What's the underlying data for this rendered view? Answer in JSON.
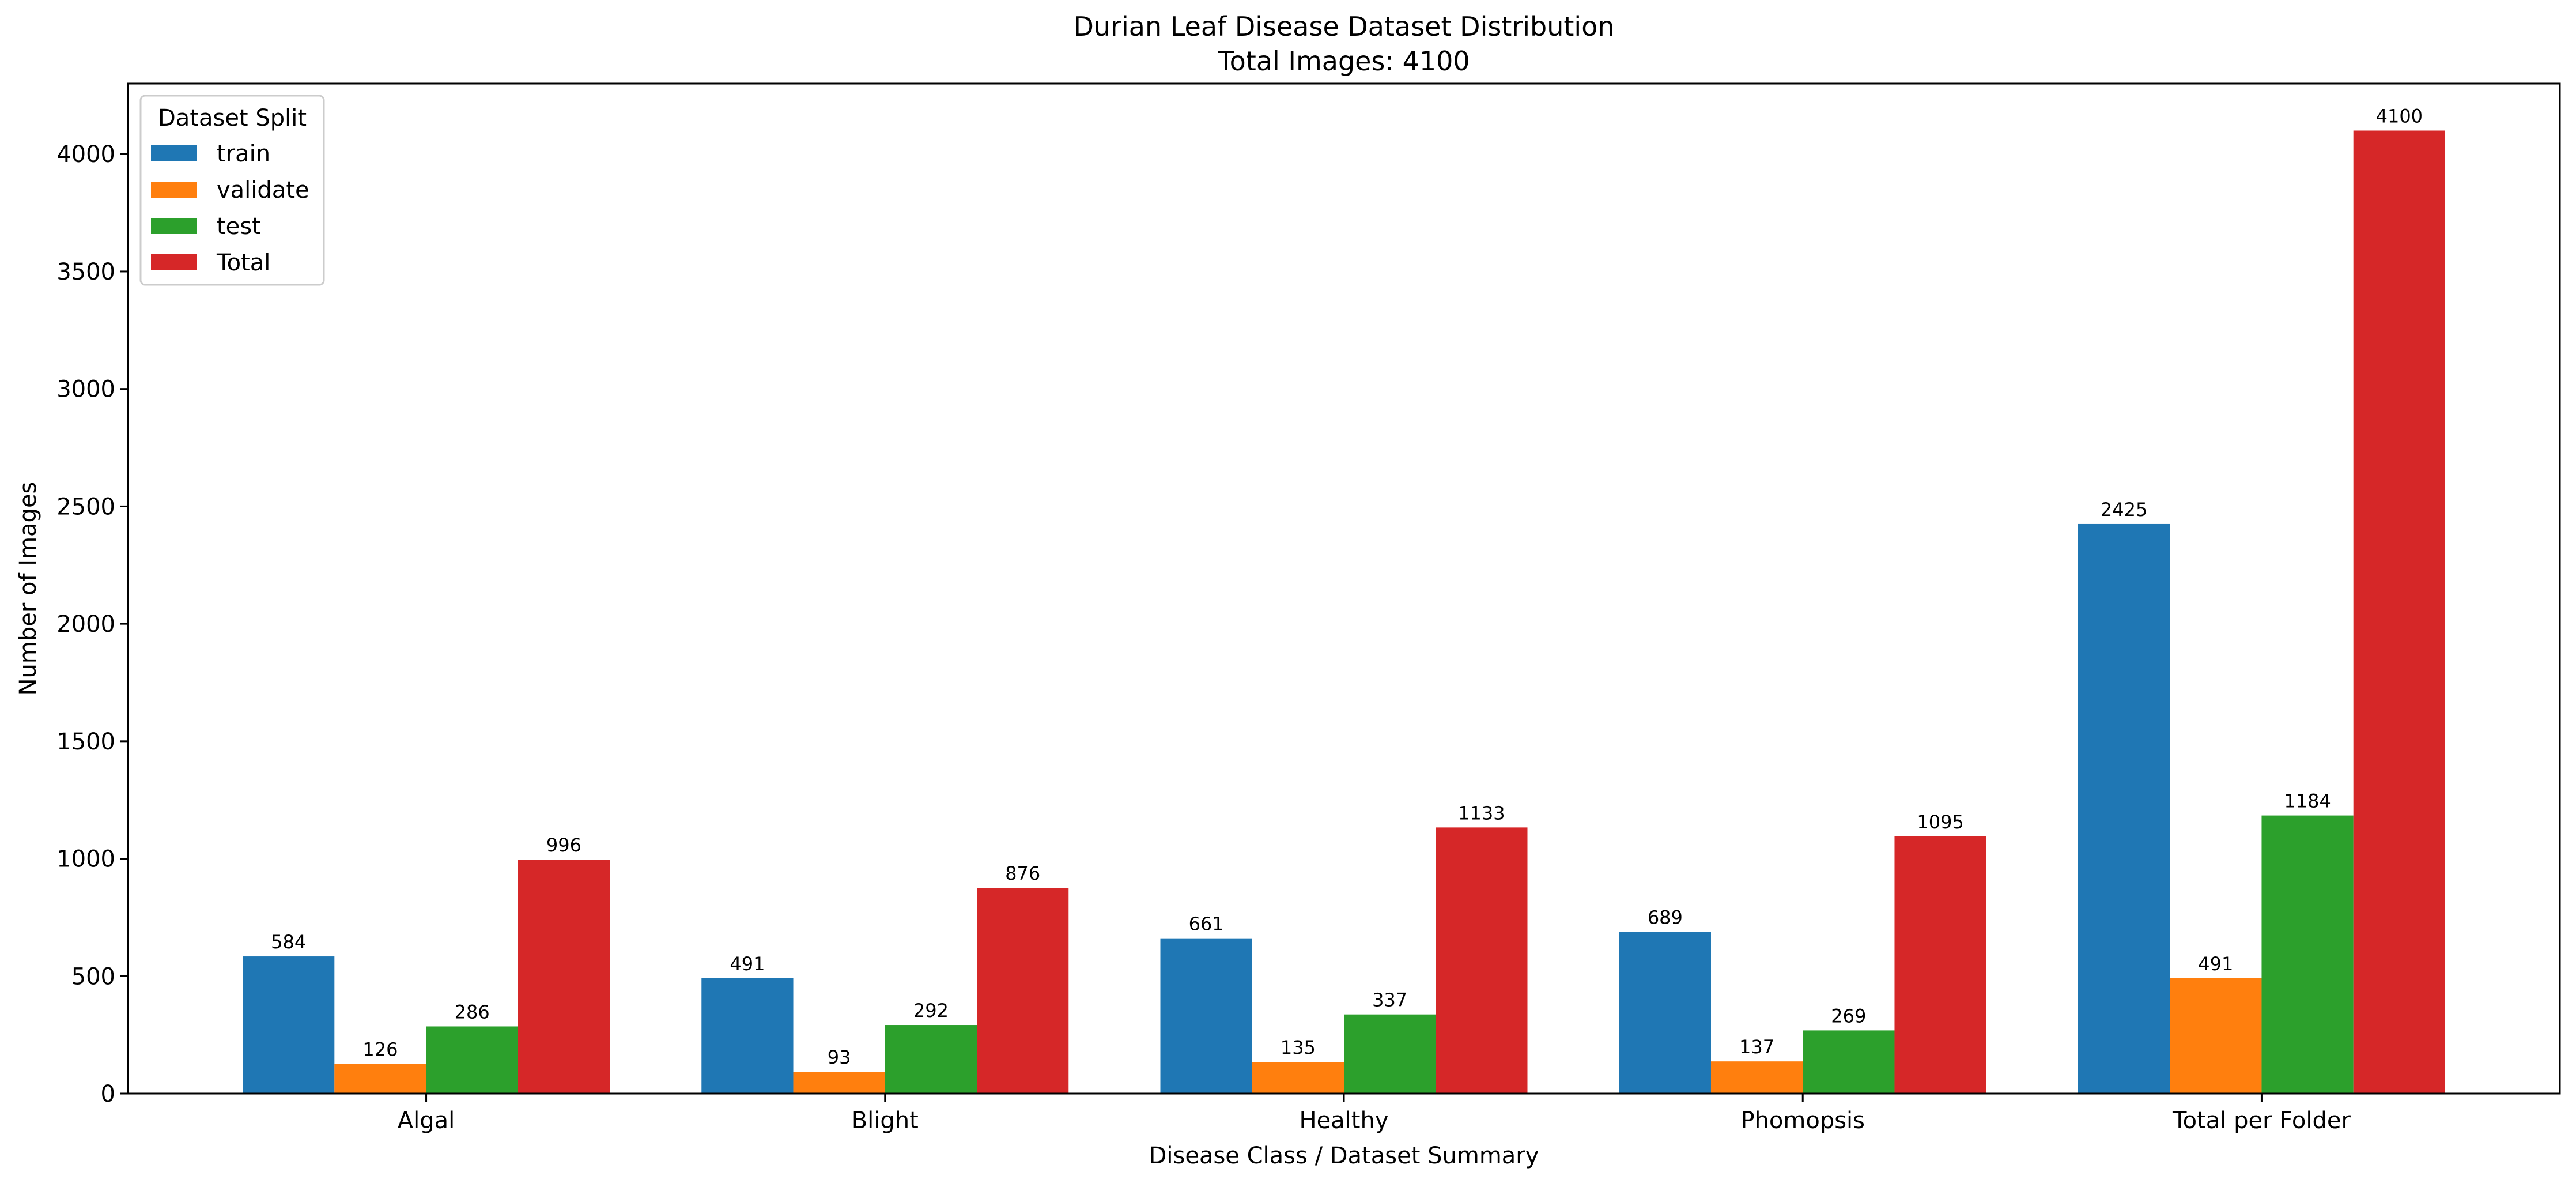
{
  "chart_data": {
    "type": "bar",
    "title": "Durian Leaf Disease Dataset Distribution",
    "subtitle": "Total Images: 4100",
    "xlabel": "Disease Class / Dataset Summary",
    "ylabel": "Number of Images",
    "categories": [
      "Algal",
      "Blight",
      "Healthy",
      "Phomopsis",
      "Total per Folder"
    ],
    "ylim": [
      0,
      4300
    ],
    "yticks": [
      0,
      500,
      1000,
      1500,
      2000,
      2500,
      3000,
      3500,
      4000
    ],
    "grid": false,
    "legend": {
      "title": "Dataset Split",
      "placement": "top-left"
    },
    "series": [
      {
        "name": "train",
        "color": "#1f77b4",
        "values": [
          584,
          491,
          661,
          689,
          2425
        ]
      },
      {
        "name": "validate",
        "color": "#ff7f0e",
        "values": [
          126,
          93,
          135,
          137,
          491
        ]
      },
      {
        "name": "test",
        "color": "#2ca02c",
        "values": [
          286,
          292,
          337,
          269,
          1184
        ]
      },
      {
        "name": "Total",
        "color": "#d62728",
        "values": [
          996,
          876,
          1133,
          1095,
          4100
        ]
      }
    ]
  }
}
